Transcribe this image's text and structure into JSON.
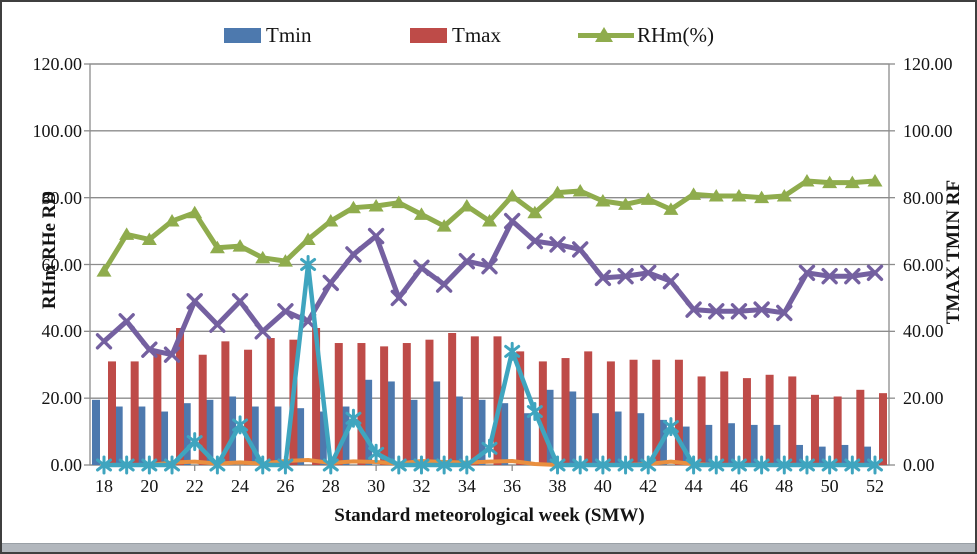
{
  "figure": {
    "x_axis_title": "Standard meteorological week (SMW)",
    "y_left_axis_title": "RHm RHe RD",
    "y_right_axis_title": "TMAX TMIN RF"
  },
  "legend": [
    {
      "label": "Tmin",
      "swatch": "bar",
      "color": "#4D79AE"
    },
    {
      "label": "Tmax",
      "swatch": "bar",
      "color": "#BE4B48"
    },
    {
      "label": "RHm(%)",
      "swatch": "line-triangle",
      "color": "#8FAC4D"
    }
  ],
  "axes": {
    "y_left_ticks": [
      "120.00",
      "100.00",
      "80.00",
      "60.00",
      "40.00",
      "20.00",
      "0.00"
    ],
    "y_right_ticks": [
      "120.00",
      "100.00",
      "80.00",
      "60.00",
      "40.00",
      "20.00",
      "0.00"
    ],
    "x_ticks": [
      "18",
      "20",
      "22",
      "24",
      "26",
      "28",
      "30",
      "32",
      "34",
      "36",
      "38",
      "40",
      "42",
      "44",
      "46",
      "48",
      "50",
      "52"
    ]
  },
  "colors": {
    "tmin_blue": "#4D79AE",
    "tmax_red": "#BE4B48",
    "rhm_green": "#8FAC4D",
    "rhe_purple": "#7460A0",
    "rf_teal": "#3FA5BF",
    "rd_orange": "#E98F3F",
    "gridline": "#8C8C8C"
  },
  "chart_data": {
    "type": "combo-bar-line",
    "title": "",
    "xlabel": "Standard meteorological week (SMW)",
    "ylabel_left": "RHm RHe RD",
    "ylabel_right": "TMAX TMIN RF",
    "ylim": [
      0,
      120
    ],
    "y_tick_step": 20,
    "grid": true,
    "legend_position": "top",
    "x": [
      18,
      19,
      20,
      21,
      22,
      23,
      24,
      25,
      26,
      27,
      28,
      29,
      30,
      31,
      32,
      33,
      34,
      35,
      36,
      37,
      38,
      39,
      40,
      41,
      42,
      43,
      44,
      45,
      46,
      47,
      48,
      49,
      50,
      51,
      52
    ],
    "series": [
      {
        "name": "Tmin",
        "type": "bar",
        "marker": "none",
        "color": "#4D79AE",
        "values": [
          19.5,
          17.5,
          17.5,
          16,
          18.5,
          19.5,
          20.5,
          17.5,
          17.5,
          17,
          16,
          17.5,
          25.5,
          25,
          19.5,
          25,
          20.5,
          19.5,
          18.5,
          15.5,
          22.5,
          22,
          15.5,
          16,
          15.5,
          13.5,
          11.5,
          12,
          12.5,
          12,
          12,
          6,
          5.5,
          6,
          5.5
        ]
      },
      {
        "name": "Tmax",
        "type": "bar",
        "marker": "none",
        "color": "#BE4B48",
        "values": [
          31,
          31,
          34,
          41,
          33,
          37,
          34.5,
          38,
          37.5,
          41,
          36.5,
          36.5,
          35.5,
          36.5,
          37.5,
          39.5,
          38.5,
          38.5,
          34,
          31,
          32,
          34,
          31,
          31.5,
          31.5,
          31.5,
          26.5,
          28,
          26,
          27,
          26.5,
          21,
          20.5,
          22.5,
          21.5
        ]
      },
      {
        "name": "RHm(%)",
        "type": "line",
        "marker": "triangle",
        "color": "#8FAC4D",
        "values": [
          58,
          69,
          67.5,
          73,
          75.5,
          65,
          65.5,
          62,
          61,
          67.5,
          73,
          77,
          77.5,
          78.5,
          75,
          71.5,
          77.5,
          73,
          80.5,
          75.5,
          81.5,
          82,
          79,
          78,
          79.5,
          76.5,
          81,
          80.5,
          80.5,
          80,
          80.5,
          85,
          84.5,
          84.5,
          85
        ]
      },
      {
        "name": "RHe",
        "type": "line",
        "marker": "x",
        "color": "#7460A0",
        "values": [
          37,
          43,
          34.5,
          33,
          49,
          42,
          49,
          40,
          46,
          43,
          54.5,
          63,
          68.5,
          50,
          59,
          54,
          61,
          59.5,
          73,
          67,
          66,
          64.5,
          56,
          56.5,
          57.5,
          55,
          46.5,
          46,
          46,
          46.5,
          45.5,
          57.5,
          56.5,
          56.5,
          57.5
        ]
      },
      {
        "name": "RF",
        "type": "line",
        "marker": "asterisk",
        "color": "#3FA5BF",
        "values": [
          0,
          0,
          0,
          0,
          7,
          0,
          12,
          0,
          0,
          60,
          0,
          14,
          3.5,
          0,
          0,
          0,
          0,
          5,
          34,
          16,
          0,
          0,
          0,
          0,
          0,
          11.5,
          0,
          0,
          0,
          0,
          0,
          0,
          0,
          0,
          0
        ]
      },
      {
        "name": "RD",
        "type": "line",
        "marker": "none",
        "color": "#E98F3F",
        "values": [
          0,
          0,
          0,
          0.7,
          1,
          0.4,
          0.8,
          0.4,
          1.2,
          1.5,
          0.6,
          1.1,
          0.9,
          0.4,
          1.2,
          0.9,
          0.7,
          1,
          1.2,
          0.3,
          0,
          0,
          0,
          0,
          0.3,
          1,
          0.3,
          0,
          0,
          0,
          0,
          0,
          0,
          0,
          0
        ]
      }
    ]
  }
}
